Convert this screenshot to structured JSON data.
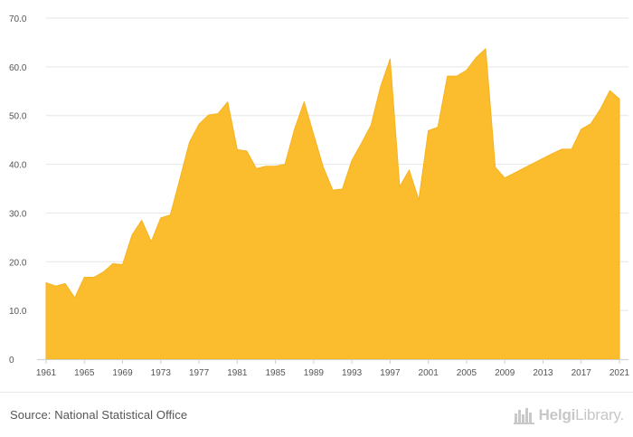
{
  "chart_data": {
    "type": "area",
    "title": "",
    "xlabel": "",
    "ylabel": "",
    "color": "#fbbd2e",
    "ylim": [
      0,
      70
    ],
    "xlim": [
      1961,
      2021
    ],
    "y_ticks": [
      0,
      10,
      20,
      30,
      40,
      50,
      60,
      70
    ],
    "y_tick_labels": [
      "0",
      "10.0",
      "20.0",
      "30.0",
      "40.0",
      "50.0",
      "60.0",
      "70.0"
    ],
    "x_ticks": [
      1961,
      1965,
      1969,
      1973,
      1977,
      1981,
      1985,
      1989,
      1993,
      1997,
      2001,
      2005,
      2009,
      2013,
      2017,
      2021
    ],
    "x_tick_labels": [
      "1961",
      "1965",
      "1969",
      "1973",
      "1977",
      "1981",
      "1985",
      "1989",
      "1993",
      "1997",
      "2001",
      "2005",
      "2009",
      "2013",
      "2017",
      "2021"
    ],
    "x": [
      1961,
      1962,
      1963,
      1964,
      1965,
      1966,
      1967,
      1968,
      1969,
      1970,
      1971,
      1972,
      1973,
      1974,
      1975,
      1976,
      1977,
      1978,
      1979,
      1980,
      1981,
      1982,
      1983,
      1984,
      1985,
      1986,
      1987,
      1988,
      1989,
      1990,
      1991,
      1992,
      1993,
      1994,
      1995,
      1996,
      1997,
      1998,
      1999,
      2000,
      2001,
      2002,
      2003,
      2004,
      2005,
      2006,
      2007,
      2008,
      2009,
      2010,
      2011,
      2012,
      2013,
      2014,
      2015,
      2016,
      2017,
      2018,
      2019,
      2020,
      2021
    ],
    "values": [
      15.7,
      15.0,
      15.5,
      12.6,
      16.8,
      16.8,
      17.9,
      19.6,
      19.4,
      25.5,
      28.5,
      24.1,
      29.0,
      29.6,
      37.0,
      44.5,
      48.2,
      50.1,
      50.4,
      52.8,
      43.0,
      42.7,
      39.1,
      39.6,
      39.6,
      40.0,
      47.2,
      52.8,
      46.1,
      39.4,
      34.7,
      34.9,
      40.8,
      44.3,
      48.0,
      55.9,
      61.6,
      35.4,
      38.8,
      32.7,
      46.9,
      47.6,
      58.1,
      58.1,
      59.3,
      61.9,
      63.7,
      39.4,
      37.2,
      38.2,
      39.2,
      40.2,
      41.2,
      42.2,
      43.1,
      43.1,
      47.2,
      48.3,
      51.3,
      55.1,
      53.4
    ]
  },
  "footer": {
    "source": "Source: National Statistical Office",
    "brand_bold": "Helgi",
    "brand_light": "Library."
  },
  "icons": {
    "brand_logo": "city-skyline-icon"
  }
}
